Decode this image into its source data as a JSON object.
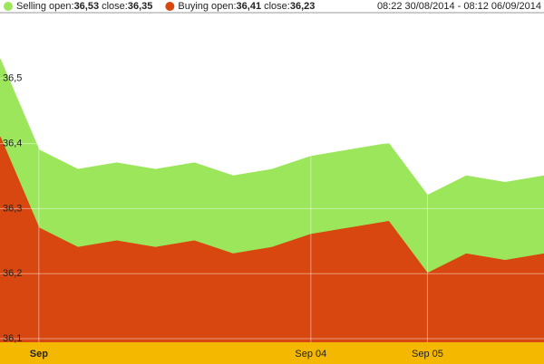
{
  "chart_data": {
    "type": "area",
    "legend": [
      {
        "label": "Selling",
        "open_label": "open:",
        "open": "36,53",
        "close_label": "close:",
        "close": "36,35"
      },
      {
        "label": "Buying",
        "open_label": "open:",
        "open": "36,41",
        "close_label": "close:",
        "close": "36,23"
      }
    ],
    "date_range": "08:22 30/08/2014 - 08:12 06/09/2014",
    "categories": [
      null,
      "Sep",
      null,
      null,
      null,
      null,
      null,
      null,
      "Sep 04",
      null,
      null,
      "Sep 05",
      null,
      null,
      null
    ],
    "series": [
      {
        "name": "Selling",
        "color": "#9be65a",
        "values": [
          36.53,
          36.39,
          36.36,
          36.37,
          36.36,
          36.37,
          36.35,
          36.36,
          36.38,
          36.39,
          36.4,
          36.32,
          36.35,
          36.34,
          36.35
        ]
      },
      {
        "name": "Buying",
        "color": "#d8470f",
        "values": [
          36.41,
          36.27,
          36.24,
          36.25,
          36.24,
          36.25,
          36.23,
          36.24,
          36.26,
          36.27,
          36.28,
          36.2,
          36.23,
          36.22,
          36.23
        ]
      }
    ],
    "ylim": [
      36.1,
      36.6
    ],
    "yticks": [
      {
        "value": 36.1,
        "label": "36,1"
      },
      {
        "value": 36.2,
        "label": "36,2"
      },
      {
        "value": 36.3,
        "label": "36,3"
      },
      {
        "value": 36.4,
        "label": "36,4"
      },
      {
        "value": 36.5,
        "label": "36,5"
      }
    ],
    "grid": true
  }
}
